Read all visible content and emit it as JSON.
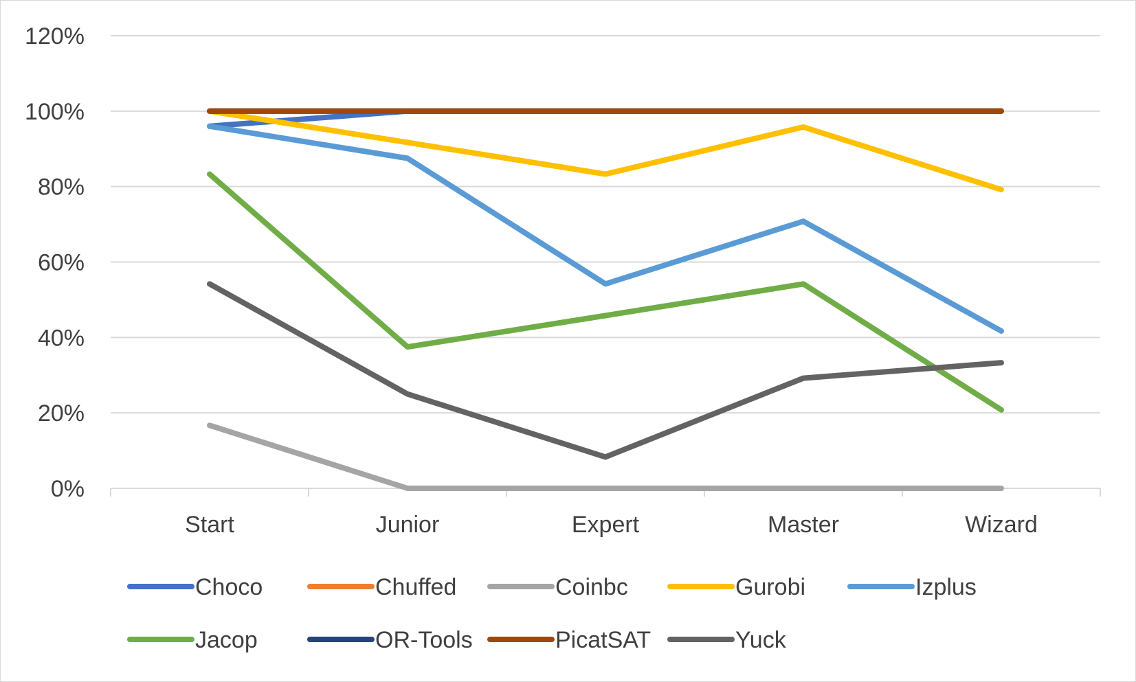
{
  "chart_data": {
    "type": "line",
    "title": "",
    "xlabel": "",
    "ylabel": "",
    "categories": [
      "Start",
      "Junior",
      "Expert",
      "Master",
      "Wizard"
    ],
    "ylim": [
      0,
      1.2
    ],
    "yticks": [
      "0%",
      "20%",
      "40%",
      "60%",
      "80%",
      "100%",
      "120%"
    ],
    "grid": true,
    "legend_position": "bottom",
    "series": [
      {
        "name": "Choco",
        "color": "#4472c4",
        "values": [
          0.96,
          1.0,
          1.0,
          1.0,
          1.0
        ]
      },
      {
        "name": "Chuffed",
        "color": "#ed7d31",
        "values": [
          1.0,
          1.0,
          1.0,
          1.0,
          1.0
        ]
      },
      {
        "name": "Coinbc",
        "color": "#a5a5a5",
        "values": [
          0.167,
          0.0,
          0.0,
          0.0,
          0.0
        ]
      },
      {
        "name": "Gurobi",
        "color": "#ffc000",
        "values": [
          1.0,
          0.917,
          0.833,
          0.958,
          0.792
        ]
      },
      {
        "name": "Izplus",
        "color": "#5b9bd5",
        "values": [
          0.96,
          0.875,
          0.542,
          0.708,
          0.417
        ]
      },
      {
        "name": "Jacop",
        "color": "#70ad47",
        "values": [
          0.833,
          0.375,
          0.458,
          0.542,
          0.208
        ]
      },
      {
        "name": "OR-Tools",
        "color": "#264478",
        "values": [
          1.0,
          1.0,
          1.0,
          1.0,
          1.0
        ]
      },
      {
        "name": "PicatSAT",
        "color": "#9e480e",
        "values": [
          1.0,
          1.0,
          1.0,
          1.0,
          1.0
        ]
      },
      {
        "name": "Yuck",
        "color": "#636363",
        "values": [
          0.542,
          0.25,
          0.083,
          0.292,
          0.333
        ]
      }
    ]
  }
}
